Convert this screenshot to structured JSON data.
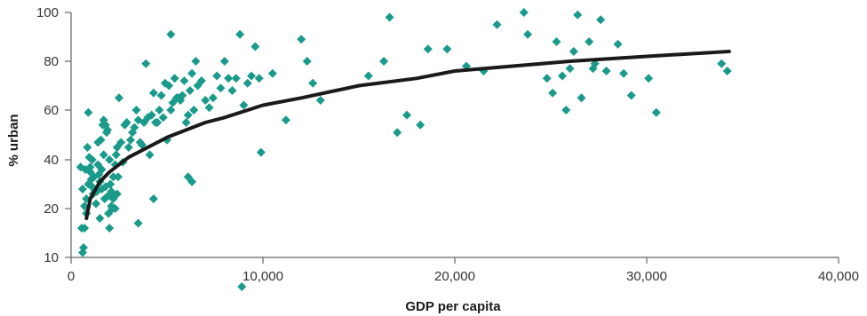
{
  "chart_data": {
    "type": "scatter",
    "title": "",
    "xlabel": "GDP per capita",
    "ylabel": "% urban",
    "xlim": [
      0,
      40000
    ],
    "ylim": [
      10,
      100
    ],
    "x_ticks": [
      0,
      10000,
      20000,
      30000,
      40000
    ],
    "x_tick_labels": [
      "0",
      "10,000",
      "20,000",
      "30,000",
      "40,000"
    ],
    "y_ticks": [
      10,
      20,
      40,
      60,
      80,
      100
    ],
    "y_tick_labels": [
      "10",
      "20",
      "40",
      "60",
      "80",
      "100"
    ],
    "grid": false,
    "legend": "none",
    "colors": {
      "points": "#1a9a8a",
      "trend": "#1a1a1a",
      "axis": "#666666"
    },
    "series": [
      {
        "kind": "points",
        "marker": "diamond",
        "x": [
          500,
          600,
          700,
          800,
          900,
          1000,
          1100,
          1200,
          1300,
          1400,
          1500,
          1600,
          1700,
          1800,
          1900,
          2000,
          2100,
          2200,
          2300,
          2400,
          550,
          650,
          750,
          850,
          950,
          1050,
          1150,
          1250,
          1350,
          1450,
          1550,
          1650,
          1750,
          1850,
          1950,
          2050,
          2150,
          2250,
          2350,
          2450,
          600,
          800,
          1000,
          1200,
          1400,
          1600,
          1800,
          2000,
          2200,
          2400,
          900,
          1300,
          1700,
          2100,
          2500,
          700,
          1100,
          1500,
          1900,
          2300,
          2600,
          2800,
          3000,
          3200,
          3400,
          3600,
          3800,
          4000,
          4200,
          4400,
          4600,
          4800,
          5000,
          5200,
          5400,
          5600,
          5800,
          6000,
          6200,
          6400,
          2700,
          2900,
          3100,
          3300,
          3500,
          3700,
          3900,
          4100,
          4300,
          4500,
          4700,
          4900,
          5100,
          5300,
          5500,
          5700,
          5900,
          6100,
          6300,
          6500,
          6600,
          6800,
          7000,
          7200,
          7400,
          7600,
          7800,
          8000,
          8200,
          8400,
          8600,
          8800,
          9000,
          9200,
          9400,
          9600,
          9800,
          3500,
          4300,
          5200,
          6100,
          6300,
          9900,
          8900,
          10500,
          11200,
          12000,
          12300,
          12600,
          13000,
          15500,
          16300,
          16600,
          17000,
          17500,
          18200,
          18600,
          19600,
          20600,
          21500,
          22200,
          23600,
          23800,
          24800,
          25100,
          25300,
          25600,
          25800,
          26000,
          26200,
          26400,
          26600,
          27000,
          27200,
          27300,
          27600,
          27900,
          28500,
          28800,
          29200,
          30100,
          30500,
          33900,
          34200
        ],
        "y": [
          37,
          28,
          21,
          24,
          30,
          35,
          40,
          33,
          22,
          38,
          31,
          36,
          42,
          29,
          25,
          40,
          27,
          33,
          38,
          45,
          16,
          12,
          36,
          45,
          41,
          32,
          26,
          27,
          27,
          34,
          48,
          54,
          24,
          51,
          19,
          30,
          20,
          25,
          42,
          33,
          11,
          19,
          37,
          28,
          47,
          28,
          54,
          16,
          24,
          26,
          59,
          28,
          56,
          21,
          65,
          16,
          29,
          18,
          52,
          20,
          47,
          54,
          45,
          51,
          60,
          47,
          55,
          57,
          58,
          55,
          60,
          57,
          48,
          60,
          73,
          65,
          66,
          55,
          68,
          60,
          39,
          55,
          48,
          53,
          56,
          46,
          79,
          42,
          67,
          55,
          66,
          71,
          70,
          63,
          65,
          64,
          72,
          58,
          75,
          80,
          70,
          72,
          64,
          61,
          65,
          74,
          69,
          80,
          73,
          68,
          73,
          91,
          62,
          71,
          74,
          86,
          73,
          17,
          24,
          91,
          33,
          31,
          43,
          4,
          75,
          56,
          89,
          80,
          71,
          64,
          74,
          80,
          98,
          51,
          58,
          54,
          85,
          85,
          78,
          76,
          95,
          100,
          91,
          73,
          67,
          88,
          74,
          60,
          77,
          84,
          99,
          65,
          88,
          77,
          79,
          97,
          76,
          87,
          75,
          66,
          73,
          59,
          79,
          76
        ]
      },
      {
        "kind": "trend",
        "x": [
          800,
          1000,
          1500,
          2000,
          3000,
          4000,
          5000,
          6000,
          7000,
          8000,
          10000,
          12000,
          15000,
          18000,
          20000,
          23000,
          26000,
          30000,
          34300
        ],
        "y": [
          18,
          24,
          31,
          35,
          41,
          45,
          49,
          52,
          55,
          57,
          62,
          65,
          70,
          73,
          76,
          78,
          80,
          82,
          84
        ]
      }
    ]
  }
}
